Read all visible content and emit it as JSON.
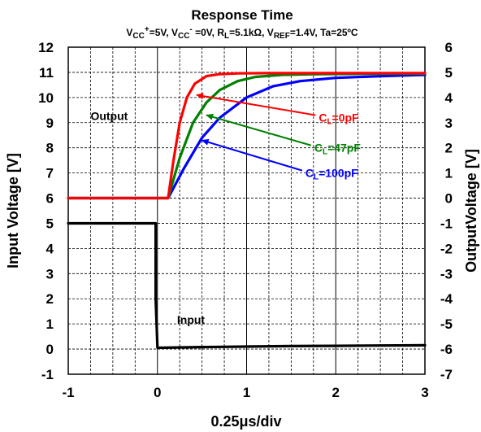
{
  "chart_data": {
    "type": "line",
    "title": "Response Time",
    "subtitle": {
      "vcc_plus_base": "V",
      "vcc_plus_sub": "CC",
      "vcc_plus_sup": "+",
      "vcc_plus_val": "=5V, ",
      "vcc_minus_base": "V",
      "vcc_minus_sub": "CC",
      "vcc_minus_sup": "-",
      "vcc_minus_val": " =0V, ",
      "rl_base": "R",
      "rl_sub": "L",
      "rl_val": "=5.1kΩ, ",
      "vref_base": "V",
      "vref_sub": "REF",
      "vref_val": "=1.4V, ",
      "ta": "Ta=25ºC"
    },
    "xlabel": "0.25μs/div",
    "ylabel_left": "Input Voltage [V]",
    "ylabel_right": "OutputVoltage [V]",
    "xlim": [
      -1,
      3
    ],
    "ylim_left": [
      -1,
      12
    ],
    "ylim_right": [
      -7,
      6
    ],
    "x_ticks": [
      "-1",
      "0",
      "1",
      "2",
      "3"
    ],
    "y_left_ticks": [
      "-1",
      "0",
      "1",
      "2",
      "3",
      "4",
      "5",
      "6",
      "7",
      "8",
      "9",
      "10",
      "11",
      "12"
    ],
    "y_right_ticks": [
      "-7",
      "-6",
      "-5",
      "-4",
      "-3",
      "-2",
      "-1",
      "0",
      "1",
      "2",
      "3",
      "4",
      "5",
      "6"
    ],
    "grid": true,
    "series": [
      {
        "axis": "left",
        "color": "#000000",
        "x": [
          -1,
          -0.02,
          -0.02,
          0.0,
          0.5,
          1.0,
          1.5,
          2.0,
          2.5,
          3.0
        ],
        "y": [
          5.0,
          5.0,
          2.0,
          0.05,
          0.08,
          0.1,
          0.12,
          0.13,
          0.14,
          0.15
        ]
      },
      {
        "axis": "right",
        "color": "#0000ff",
        "x": [
          -1,
          0.12,
          0.3,
          0.5,
          0.7,
          1.0,
          1.3,
          1.6,
          2.0,
          2.5,
          3.0
        ],
        "y": [
          0.0,
          0.0,
          1.2,
          2.4,
          3.2,
          4.0,
          4.45,
          4.65,
          4.78,
          4.85,
          4.9
        ]
      },
      {
        "axis": "right",
        "color": "#008000",
        "x": [
          -1,
          0.12,
          0.25,
          0.4,
          0.55,
          0.7,
          0.9,
          1.1,
          1.4,
          1.8,
          2.5,
          3.0
        ],
        "y": [
          0.0,
          0.0,
          1.6,
          3.0,
          3.8,
          4.3,
          4.65,
          4.82,
          4.9,
          4.93,
          4.95,
          4.95
        ]
      },
      {
        "axis": "right",
        "color": "#ff0000",
        "x": [
          -1,
          0.12,
          0.18,
          0.25,
          0.33,
          0.42,
          0.55,
          0.7,
          0.9,
          1.2,
          2.0,
          3.0
        ],
        "y": [
          0.0,
          0.0,
          1.5,
          3.0,
          4.0,
          4.55,
          4.85,
          4.93,
          4.96,
          4.97,
          4.97,
          4.97
        ]
      }
    ],
    "annotations": {
      "output": "Output",
      "input": "Input",
      "cl0": {
        "base": "C",
        "sub": "L",
        "val": "=0pF",
        "color": "#ff0000",
        "label_x": 1.7,
        "label_y": 3.2,
        "arrow_x": 0.44,
        "arrow_y": 4.1
      },
      "cl47": {
        "base": "C",
        "sub": "L",
        "val": "=47pF",
        "color": "#008000",
        "label_x": 1.65,
        "label_y": 2.0,
        "arrow_x": 0.55,
        "arrow_y": 3.3
      },
      "cl100": {
        "base": "C",
        "sub": "L",
        "val": "=100pF",
        "color": "#0000ff",
        "label_x": 1.55,
        "label_y": 1.0,
        "arrow_x": 0.5,
        "arrow_y": 2.3
      }
    }
  }
}
